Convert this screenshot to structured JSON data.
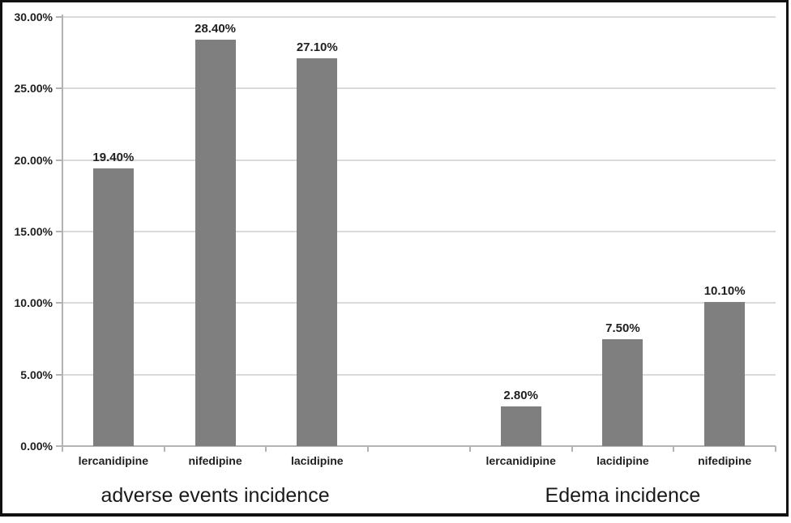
{
  "figure": {
    "background": "#ffffff",
    "border_color": "#111111"
  },
  "chart_data": {
    "type": "bar",
    "title": "",
    "xlabel": "",
    "ylabel": "",
    "ylim": [
      0,
      0.3
    ],
    "y_tick_step": 0.05,
    "y_tick_labels": [
      "0.00%",
      "5.00%",
      "10.00%",
      "15.00%",
      "20.00%",
      "25.00%",
      "30.00%"
    ],
    "grid": true,
    "legend": "none",
    "bar_color": "#7f7f7f",
    "gridline_color": "#d9d9d9",
    "axis_color": "#b3b3b3",
    "text_color": "#1f1f1f",
    "gap_slots_between_groups": 1,
    "groups": [
      {
        "title": "adverse events incidence",
        "categories": [
          "lercanidipine",
          "nifedipine",
          "lacidipine"
        ],
        "values": [
          0.194,
          0.284,
          0.271
        ],
        "value_labels": [
          "19.40%",
          "28.40%",
          "27.10%"
        ]
      },
      {
        "title": "Edema incidence",
        "categories": [
          "lercanidipine",
          "lacidipine",
          "nifedipine"
        ],
        "values": [
          0.028,
          0.075,
          0.101
        ],
        "value_labels": [
          "2.80%",
          "7.50%",
          "10.10%"
        ]
      }
    ]
  }
}
